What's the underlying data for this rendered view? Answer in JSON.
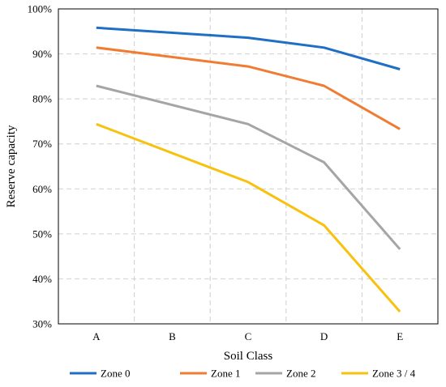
{
  "chart_data": {
    "type": "line",
    "categories": [
      "A",
      "B",
      "C",
      "D",
      "E"
    ],
    "x_tick_labels": [
      "A",
      "B",
      "C",
      "D",
      "E"
    ],
    "y_tick_labels": [
      "30%",
      "40%",
      "50%",
      "60%",
      "70%",
      "80%",
      "90%",
      "100%"
    ],
    "y_ticks": [
      30,
      40,
      50,
      60,
      70,
      80,
      90,
      100
    ],
    "ylim": [
      30,
      100
    ],
    "xlabel": "Soil Class",
    "ylabel": "Reserve capacity",
    "grid": "dashed",
    "legend_position": "bottom",
    "series": [
      {
        "name": "Zone 0",
        "color": "#1f6fc5",
        "values": [
          95.8,
          null,
          93.6,
          91.4,
          86.6
        ]
      },
      {
        "name": "Zone 1",
        "color": "#ef7c30",
        "values": [
          91.4,
          null,
          87.2,
          82.9,
          73.3
        ]
      },
      {
        "name": "Zone 2",
        "color": "#a5a5a5",
        "values": [
          82.9,
          null,
          74.4,
          65.9,
          46.6
        ]
      },
      {
        "name": "Zone 3 / 4",
        "color": "#f7c10e",
        "values": [
          74.4,
          null,
          61.5,
          51.9,
          32.7
        ]
      }
    ]
  }
}
